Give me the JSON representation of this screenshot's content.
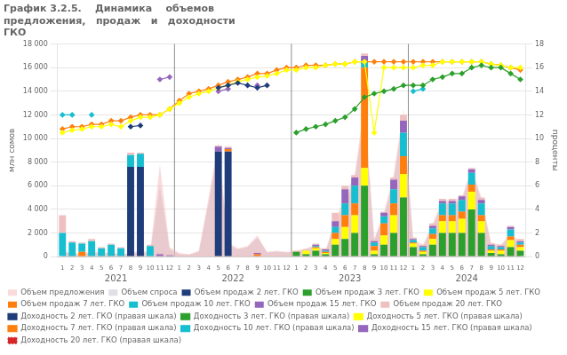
{
  "chart_data": {
    "type": "bar",
    "title": "График 3.2.5.    Динамика    объемов\nпредложения,   продаж   и   доходности\nГКО",
    "y_label": "млн сомов",
    "y2_label": "проценты",
    "categories": [
      "1",
      "2",
      "3",
      "4",
      "5",
      "6",
      "7",
      "8",
      "9",
      "10",
      "11",
      "12",
      "1",
      "2",
      "3",
      "4",
      "5",
      "6",
      "7",
      "8",
      "9",
      "10",
      "11",
      "12",
      "1",
      "2",
      "3",
      "4",
      "5",
      "6",
      "7",
      "8",
      "9",
      "10",
      "11",
      "12",
      "1",
      "2",
      "3",
      "4",
      "5",
      "6",
      "7",
      "8",
      "9",
      "10",
      "11",
      "12"
    ],
    "annotations": [
      "2021",
      "2022",
      "2023",
      "2024"
    ],
    "ylim": [
      0,
      18000
    ],
    "yticks": [
      0,
      {
        "value": 2000,
        "label": "2 000"
      },
      {
        "value": 4000,
        "label": "4 000"
      },
      {
        "value": 6000,
        "label": "6 000"
      },
      {
        "value": 8000,
        "label": "8 000"
      },
      {
        "value": 10000,
        "label": "10 000"
      },
      {
        "value": 12000,
        "label": "12 000"
      },
      {
        "value": 14000,
        "label": "14 000"
      },
      {
        "value": 16000,
        "label": "16 000"
      },
      {
        "value": 18000,
        "label": "18 000"
      }
    ],
    "y2lim": [
      0,
      18
    ],
    "y2ticks": [
      0,
      2,
      4,
      6,
      8,
      10,
      12,
      14,
      16,
      18
    ],
    "stacked": true,
    "grid": true,
    "legend": "bottom",
    "series": [
      {
        "name": "Объем предложения",
        "type": "area",
        "color": "#f4b8b8",
        "values": [
          500,
          300,
          200,
          500,
          300,
          400,
          200,
          300,
          500,
          400,
          7800,
          800,
          300,
          200,
          500,
          5000,
          9700,
          1200,
          700,
          900,
          1800,
          400,
          500,
          400,
          500,
          700,
          1000,
          500,
          3200,
          5000,
          7000,
          13000,
          1500,
          3700,
          7000,
          12500,
          1500,
          1000,
          2800,
          4800,
          4800,
          5000,
          7500,
          5000,
          1200,
          1000,
          2000,
          1200
        ]
      },
      {
        "name": "Объем спроса",
        "type": "area",
        "color": "#c0c0d0",
        "values": [
          400,
          200,
          150,
          400,
          200,
          300,
          150,
          250,
          400,
          300,
          6000,
          600,
          200,
          150,
          400,
          4500,
          9000,
          1000,
          600,
          800,
          1600,
          350,
          400,
          350,
          400,
          600,
          900,
          400,
          2800,
          4500,
          6500,
          12000,
          1400,
          3500,
          6500,
          12000,
          1200,
          800,
          2500,
          4500,
          4500,
          4800,
          7200,
          4800,
          1000,
          900,
          1800,
          1000
        ]
      },
      {
        "name": "Объем продаж 2 лет. ГКО",
        "type": "bar",
        "color": "#1f3d7a",
        "values": [
          0,
          0,
          0,
          0,
          0,
          0,
          0,
          7600,
          7600,
          0,
          0,
          0,
          0,
          0,
          0,
          0,
          8900,
          8900,
          0,
          0,
          0,
          0,
          0,
          0,
          0,
          0,
          0,
          0,
          0,
          0,
          0,
          0,
          0,
          0,
          0,
          0,
          0,
          0,
          0,
          0,
          0,
          0,
          0,
          0,
          0,
          0,
          0,
          0
        ]
      },
      {
        "name": "Объем продаж 3 лет. ГКО",
        "type": "bar",
        "color": "#2ca02c",
        "values": [
          0,
          0,
          0,
          0,
          0,
          0,
          0,
          0,
          0,
          0,
          0,
          0,
          0,
          0,
          0,
          0,
          0,
          0,
          0,
          0,
          0,
          0,
          0,
          0,
          400,
          200,
          500,
          200,
          1000,
          1500,
          2000,
          6000,
          200,
          1000,
          2000,
          5000,
          800,
          200,
          1000,
          2000,
          2000,
          2000,
          4000,
          2000,
          300,
          200,
          800,
          500
        ]
      },
      {
        "name": "Объем продаж 5 лет. ГКО",
        "type": "bar",
        "color": "#ffff00",
        "values": [
          0,
          0,
          0,
          0,
          0,
          0,
          0,
          0,
          0,
          0,
          0,
          0,
          0,
          0,
          0,
          0,
          0,
          0,
          0,
          0,
          0,
          0,
          0,
          0,
          0,
          300,
          200,
          100,
          500,
          1000,
          1500,
          1500,
          300,
          800,
          1500,
          2000,
          300,
          200,
          500,
          1000,
          1000,
          1200,
          1500,
          1000,
          200,
          300,
          600,
          300
        ]
      },
      {
        "name": "Объем продаж 7 лет. ГКО",
        "type": "bar",
        "color": "#ff7f0e",
        "values": [
          0,
          0,
          400,
          0,
          0,
          0,
          0,
          0,
          0,
          0,
          0,
          0,
          0,
          0,
          0,
          0,
          0,
          200,
          0,
          0,
          200,
          0,
          0,
          0,
          0,
          0,
          100,
          100,
          500,
          1000,
          1000,
          8500,
          400,
          1000,
          1000,
          1500,
          100,
          100,
          400,
          500,
          500,
          600,
          600,
          500,
          100,
          100,
          300,
          200
        ]
      },
      {
        "name": "Объем продаж 10 лет. ГКО",
        "type": "bar",
        "color": "#17becf",
        "values": [
          2000,
          1200,
          700,
          1300,
          700,
          1000,
          700,
          1000,
          1100,
          900,
          0,
          0,
          0,
          0,
          0,
          0,
          0,
          0,
          0,
          0,
          0,
          0,
          0,
          0,
          0,
          0,
          100,
          100,
          500,
          1000,
          1500,
          500,
          300,
          600,
          1200,
          2000,
          200,
          300,
          500,
          1000,
          1000,
          1000,
          1000,
          1000,
          300,
          200,
          600,
          200
        ]
      },
      {
        "name": "Объем продаж 15 лет. ГКО",
        "type": "bar",
        "color": "#9467bd",
        "values": [
          0,
          0,
          0,
          0,
          0,
          0,
          0,
          0,
          0,
          0,
          200,
          100,
          0,
          0,
          0,
          0,
          400,
          100,
          0,
          0,
          100,
          0,
          0,
          0,
          0,
          0,
          100,
          100,
          500,
          1200,
          700,
          500,
          100,
          300,
          800,
          1000,
          100,
          100,
          200,
          200,
          200,
          300,
          300,
          300,
          100,
          100,
          200,
          100
        ]
      },
      {
        "name": "Объем продаж 20 лет. ГКО",
        "type": "bar",
        "color": "#f0c0c0",
        "values": [
          1500,
          100,
          100,
          200,
          100,
          100,
          100,
          200,
          100,
          100,
          100,
          100,
          100,
          100,
          100,
          100,
          100,
          100,
          100,
          100,
          100,
          100,
          100,
          100,
          100,
          100,
          100,
          100,
          700,
          300,
          200,
          200,
          100,
          100,
          200,
          500,
          100,
          100,
          200,
          200,
          200,
          100,
          100,
          200,
          100,
          100,
          100,
          200
        ]
      },
      {
        "name": "Доходность 2 лет. ГКО (правая шкала)",
        "type": "line",
        "axis": "y2",
        "marker": "diamond",
        "color": "#1f3d7a",
        "values": [
          null,
          null,
          null,
          null,
          null,
          null,
          null,
          11.0,
          11.1,
          null,
          null,
          null,
          null,
          null,
          null,
          null,
          14.3,
          14.5,
          14.7,
          14.5,
          14.3,
          14.5,
          null,
          null,
          null,
          null,
          null,
          null,
          null,
          null,
          null,
          null,
          null,
          null,
          null,
          null,
          null,
          null,
          null,
          null,
          null,
          null,
          null,
          null,
          null,
          null,
          null,
          null
        ]
      },
      {
        "name": "Доходность 3 лет. ГКО (правая шкала)",
        "type": "line",
        "axis": "y2",
        "marker": "diamond",
        "color": "#2ca02c",
        "values": [
          null,
          null,
          null,
          null,
          null,
          null,
          null,
          null,
          null,
          null,
          null,
          null,
          null,
          null,
          null,
          null,
          null,
          null,
          null,
          null,
          null,
          null,
          null,
          null,
          10.5,
          10.8,
          11.0,
          11.2,
          11.5,
          11.8,
          12.5,
          13.5,
          13.8,
          14.0,
          14.2,
          14.5,
          14.5,
          14.5,
          15.0,
          15.2,
          15.5,
          15.5,
          16.0,
          16.2,
          16.0,
          16.0,
          15.5,
          15.0
        ]
      },
      {
        "name": "Доходность 5 лет. ГКО (правая шкала)",
        "type": "line",
        "axis": "y2",
        "marker": "diamond",
        "color": "#ffff00",
        "values": [
          10.5,
          10.7,
          10.8,
          11.0,
          11.0,
          11.2,
          11.0,
          11.5,
          11.8,
          11.8,
          12.0,
          12.5,
          13.0,
          13.5,
          13.8,
          14.0,
          14.3,
          14.5,
          14.8,
          15.0,
          15.2,
          15.3,
          15.5,
          15.8,
          15.8,
          16.0,
          16.0,
          16.2,
          16.3,
          16.3,
          16.5,
          16.5,
          10.5,
          16.0,
          16.0,
          16.0,
          16.0,
          16.2,
          16.2,
          16.5,
          16.5,
          16.5,
          16.5,
          16.5,
          16.3,
          16.2,
          16.0,
          16.0
        ]
      },
      {
        "name": "Доходность 7 лет. ГКО (правая шкала)",
        "type": "line",
        "axis": "y2",
        "marker": "diamond",
        "color": "#ff7f0e",
        "values": [
          10.8,
          11.0,
          11.0,
          11.2,
          11.2,
          11.5,
          11.5,
          11.8,
          12.0,
          12.0,
          12.0,
          12.5,
          13.2,
          13.8,
          14.0,
          14.2,
          14.5,
          14.8,
          15.0,
          15.2,
          15.5,
          15.5,
          15.8,
          16.0,
          16.0,
          16.2,
          16.2,
          16.2,
          16.3,
          16.3,
          16.5,
          16.5,
          16.5,
          16.5,
          16.5,
          16.5,
          16.5,
          16.5,
          16.5,
          16.5,
          16.5,
          16.5,
          16.5,
          16.5,
          16.3,
          16.2,
          16.0,
          15.8
        ]
      },
      {
        "name": "Доходность 10 лет. ГКО (правая шкала)",
        "type": "line",
        "axis": "y2",
        "marker": "diamond",
        "color": "#17becf",
        "values": [
          12.0,
          12.0,
          null,
          12.0,
          null,
          null,
          null,
          null,
          null,
          null,
          null,
          null,
          null,
          null,
          null,
          null,
          null,
          null,
          null,
          null,
          null,
          null,
          null,
          null,
          null,
          null,
          null,
          null,
          null,
          null,
          null,
          null,
          null,
          null,
          null,
          null,
          14.0,
          14.2,
          null,
          null,
          null,
          null,
          null,
          null,
          null,
          null,
          null,
          null
        ]
      },
      {
        "name": "Доходность 15 лет. ГКО (правая шкала)",
        "type": "line",
        "axis": "y2",
        "marker": "diamond",
        "color": "#9467bd",
        "values": [
          null,
          null,
          null,
          null,
          null,
          null,
          null,
          null,
          null,
          null,
          15.0,
          15.2,
          null,
          null,
          null,
          null,
          14.0,
          14.2,
          null,
          null,
          14.5,
          null,
          null,
          null,
          null,
          null,
          null,
          null,
          null,
          null,
          null,
          null,
          null,
          null,
          null,
          null,
          null,
          null,
          null,
          null,
          null,
          null,
          null,
          null,
          null,
          null,
          null,
          null
        ]
      },
      {
        "name": "Доходность 20 лет. ГКО (правая шкала)",
        "type": "line",
        "axis": "y2",
        "marker": "circle",
        "line_style": "dotted",
        "color": "#d62728",
        "values": [
          null,
          null,
          null,
          null,
          null,
          null,
          null,
          null,
          null,
          null,
          null,
          null,
          null,
          null,
          null,
          null,
          null,
          null,
          null,
          null,
          null,
          null,
          null,
          null,
          null,
          null,
          null,
          null,
          null,
          null,
          null,
          null,
          null,
          null,
          null,
          null,
          null,
          null,
          null,
          null,
          null,
          null,
          null,
          null,
          null,
          null,
          null,
          null
        ]
      }
    ]
  }
}
